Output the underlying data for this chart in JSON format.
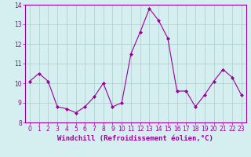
{
  "x": [
    0,
    1,
    2,
    3,
    4,
    5,
    6,
    7,
    8,
    9,
    10,
    11,
    12,
    13,
    14,
    15,
    16,
    17,
    18,
    19,
    20,
    21,
    22,
    23
  ],
  "y": [
    10.1,
    10.5,
    10.1,
    8.8,
    8.7,
    8.5,
    8.8,
    9.3,
    10.0,
    8.8,
    9.0,
    11.5,
    12.6,
    13.8,
    13.2,
    12.3,
    9.6,
    9.6,
    8.8,
    9.4,
    10.1,
    10.7,
    10.3,
    9.4
  ],
  "line_color": "#990099",
  "marker": "D",
  "markersize": 2,
  "linewidth": 0.8,
  "xlabel": "Windchill (Refroidissement éolien,°C)",
  "xlabel_fontsize": 6.5,
  "bg_color": "#d5eef0",
  "grid_color": "#aacccc",
  "ylim": [
    8,
    14
  ],
  "xlim": [
    -0.5,
    23.5
  ],
  "yticks": [
    8,
    9,
    10,
    11,
    12,
    13,
    14
  ],
  "xticks": [
    0,
    1,
    2,
    3,
    4,
    5,
    6,
    7,
    8,
    9,
    10,
    11,
    12,
    13,
    14,
    15,
    16,
    17,
    18,
    19,
    20,
    21,
    22,
    23
  ],
  "tick_fontsize": 5.5,
  "tick_color": "#990099",
  "label_color": "#990099",
  "spine_color": "#990099"
}
